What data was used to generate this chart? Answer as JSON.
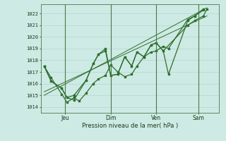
{
  "xlabel": "Pression niveau de la mer( hPa )",
  "bg_color": "#ceeae4",
  "grid_color": "#a8d4cc",
  "line_color": "#2d6e2d",
  "vline_color": "#4a7a4a",
  "ylim": [
    1013.5,
    1022.8
  ],
  "yticks": [
    1014,
    1015,
    1016,
    1017,
    1018,
    1019,
    1020,
    1021,
    1022
  ],
  "x_tick_labels": [
    "Jeu",
    "Dim",
    "Ven",
    "Sam"
  ],
  "x_tick_positions": [
    0.12,
    0.38,
    0.64,
    0.88
  ],
  "series": [
    {
      "x": [
        0.0,
        0.04,
        0.1,
        0.13,
        0.17,
        0.2,
        0.24,
        0.28,
        0.31,
        0.35,
        0.38,
        0.42,
        0.46,
        0.5,
        0.53,
        0.57,
        0.61,
        0.64,
        0.68,
        0.71,
        0.82,
        0.86,
        0.91
      ],
      "y": [
        1017.5,
        1016.5,
        1015.1,
        1014.4,
        1014.8,
        1014.5,
        1015.2,
        1016.0,
        1016.4,
        1016.7,
        1017.6,
        1017.0,
        1016.6,
        1016.8,
        1017.5,
        1018.3,
        1018.7,
        1018.8,
        1019.2,
        1019.0,
        1021.5,
        1021.8,
        1022.3
      ]
    },
    {
      "x": [
        0.0,
        0.04,
        0.1,
        0.13,
        0.17,
        0.24,
        0.28,
        0.31,
        0.35,
        0.38,
        0.42,
        0.46,
        0.5,
        0.53,
        0.57,
        0.61,
        0.64,
        0.68,
        0.71,
        0.82,
        0.86,
        0.91
      ],
      "y": [
        1017.5,
        1016.2,
        1015.6,
        1014.8,
        1014.6,
        1016.3,
        1017.7,
        1018.5,
        1018.8,
        1016.7,
        1016.8,
        1018.3,
        1017.5,
        1018.7,
        1018.3,
        1019.3,
        1019.5,
        1018.8,
        1016.8,
        1021.4,
        1021.8,
        1022.4
      ]
    },
    {
      "x": [
        0.0,
        0.04,
        0.1,
        0.13,
        0.17,
        0.24,
        0.28,
        0.31,
        0.35,
        0.38,
        0.42,
        0.46,
        0.5,
        0.53,
        0.57,
        0.61,
        0.64,
        0.68,
        0.82,
        0.86,
        0.91,
        0.93
      ],
      "y": [
        1017.5,
        1016.2,
        1015.6,
        1014.8,
        1015.0,
        1016.3,
        1017.7,
        1018.5,
        1019.0,
        1016.7,
        1016.8,
        1018.3,
        1017.5,
        1018.7,
        1018.3,
        1019.3,
        1019.5,
        1018.8,
        1021.0,
        1021.4,
        1021.8,
        1022.4
      ]
    }
  ],
  "trend_lines": [
    {
      "x": [
        0.0,
        0.93
      ],
      "y": [
        1015.0,
        1022.5
      ]
    },
    {
      "x": [
        0.0,
        0.93
      ],
      "y": [
        1015.3,
        1021.8
      ]
    }
  ]
}
